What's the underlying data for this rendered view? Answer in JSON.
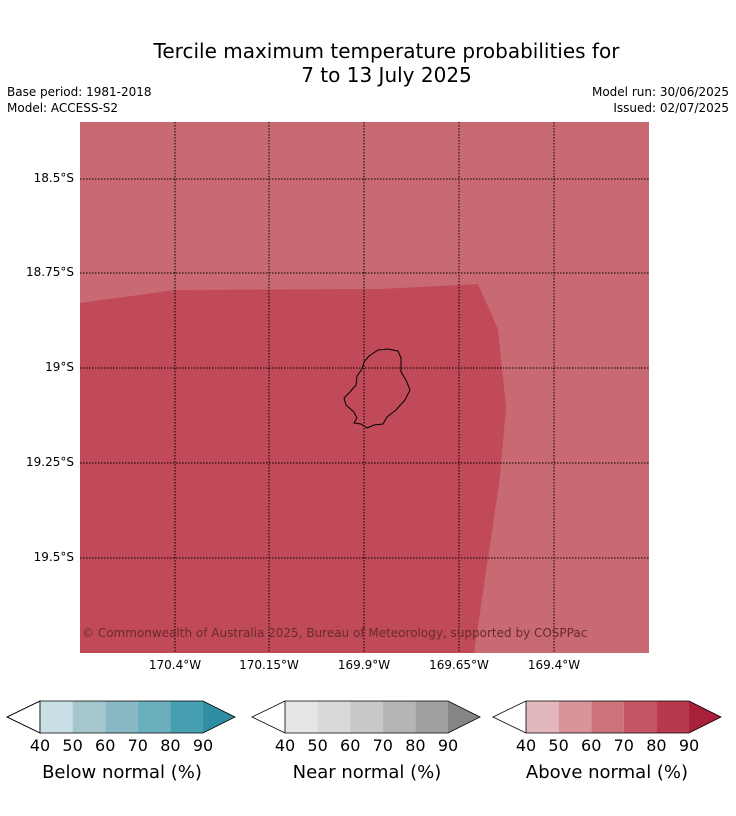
{
  "title_line1": "Tercile maximum temperature probabilities for",
  "title_line2": "7 to 13 July 2025",
  "base_period": "Base period: 1981-2018",
  "model": "Model: ACCESS-S2",
  "model_run": "Model run: 30/06/2025",
  "issued": "Issued: 02/07/2025",
  "copyright": "© Commonwealth of Australia 2025, Bureau of Meteorology, supported by COSPPac",
  "lat_labels": [
    "18.5°S",
    "18.75°S",
    "19°S",
    "19.25°S",
    "19.5°S"
  ],
  "lon_labels": [
    "170.4°W",
    "170.15°W",
    "169.9°W",
    "169.65°W",
    "169.4°W"
  ],
  "map_colors": {
    "above_60_70": "#c96a72",
    "above_70_80": "#c04a57",
    "coastline": "#000000"
  },
  "colorbars": [
    {
      "label": "Below normal (%)",
      "ticks": [
        "40",
        "50",
        "60",
        "70",
        "80",
        "90"
      ],
      "colors": [
        "#ffffff",
        "#c8e0e6",
        "#a4c6cc",
        "#88b8c4",
        "#6aafbe",
        "#469fb0",
        "#2f8ea3"
      ]
    },
    {
      "label": "Near normal (%)",
      "ticks": [
        "40",
        "50",
        "60",
        "70",
        "80",
        "90"
      ],
      "colors": [
        "#ffffff",
        "#e6e6e6",
        "#d9d9d9",
        "#c8c8c8",
        "#b5b5b5",
        "#a0a0a0",
        "#868686"
      ]
    },
    {
      "label": "Above normal (%)",
      "ticks": [
        "40",
        "50",
        "60",
        "70",
        "80",
        "90"
      ],
      "colors": [
        "#ffffff",
        "#e2b8bc",
        "#d79499",
        "#cc737a",
        "#c35663",
        "#b73a4c",
        "#a8203a"
      ]
    }
  ]
}
